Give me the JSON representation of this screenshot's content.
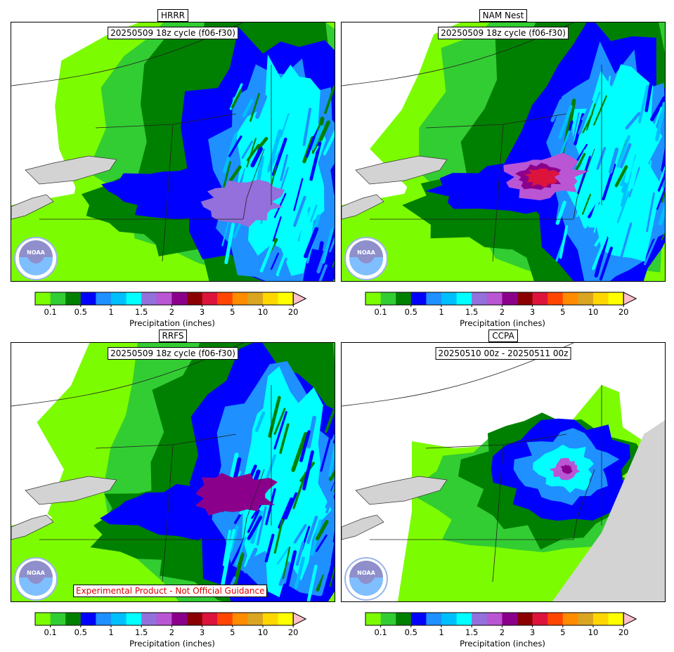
{
  "panels": [
    {
      "title": "HRRR",
      "subtitle": "20250509 18z cycle (f06-f30)",
      "disclaimer": ""
    },
    {
      "title": "NAM Nest",
      "subtitle": "20250509 18z cycle (f06-f30)",
      "disclaimer": ""
    },
    {
      "title": "RRFS",
      "subtitle": "20250509 18z cycle (f06-f30)",
      "disclaimer": "Experimental Product - Not Official Guidance"
    },
    {
      "title": "CCPA",
      "subtitle": "20250510 00z - 20250511 00z",
      "disclaimer": ""
    }
  ],
  "colorbar": {
    "label": "Precipitation (inches)",
    "ticks": [
      "0.1",
      "0.5",
      "1",
      "1.5",
      "2",
      "3",
      "5",
      "10",
      "20"
    ],
    "tick_index": [
      1,
      3,
      5,
      7,
      9,
      11,
      13,
      15,
      17
    ],
    "colors": [
      "#7cfc00",
      "#32cd32",
      "#008000",
      "#0000ff",
      "#1e90ff",
      "#00bfff",
      "#00ffff",
      "#9370db",
      "#ba55d3",
      "#8b008b",
      "#8b0000",
      "#dc143c",
      "#ff4500",
      "#ff8c00",
      "#daa520",
      "#ffd700",
      "#ffff00"
    ],
    "extend_color": "#ffc0cb"
  },
  "chart_data": [
    {
      "type": "heatmap",
      "title": "HRRR",
      "subtitle": "20250509 18z cycle (f06-f30)",
      "colorbar_label": "Precipitation (inches)",
      "levels": [
        0.01,
        0.1,
        0.25,
        0.5,
        0.75,
        1,
        1.25,
        1.5,
        1.75,
        2,
        2.5,
        3,
        4,
        5,
        7,
        10,
        15,
        20
      ]
    },
    {
      "type": "heatmap",
      "title": "NAM Nest",
      "subtitle": "20250509 18z cycle (f06-f30)",
      "colorbar_label": "Precipitation (inches)",
      "levels": [
        0.01,
        0.1,
        0.25,
        0.5,
        0.75,
        1,
        1.25,
        1.5,
        1.75,
        2,
        2.5,
        3,
        4,
        5,
        7,
        10,
        15,
        20
      ]
    },
    {
      "type": "heatmap",
      "title": "RRFS",
      "subtitle": "20250509 18z cycle (f06-f30)",
      "colorbar_label": "Precipitation (inches)",
      "levels": [
        0.01,
        0.1,
        0.25,
        0.5,
        0.75,
        1,
        1.25,
        1.5,
        1.75,
        2,
        2.5,
        3,
        4,
        5,
        7,
        10,
        15,
        20
      ]
    },
    {
      "type": "heatmap",
      "title": "CCPA",
      "subtitle": "20250510 00z - 20250511 00z",
      "colorbar_label": "Precipitation (inches)",
      "levels": [
        0.01,
        0.1,
        0.25,
        0.5,
        0.75,
        1,
        1.25,
        1.5,
        1.75,
        2,
        2.5,
        3,
        4,
        5,
        7,
        10,
        15,
        20
      ]
    }
  ]
}
